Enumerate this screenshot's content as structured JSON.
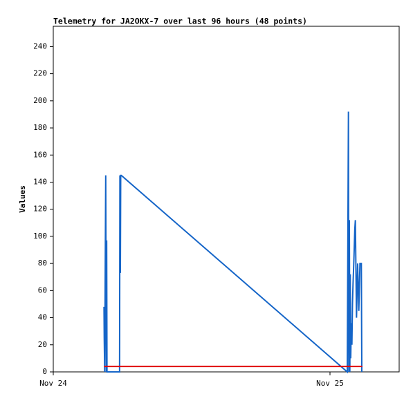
{
  "chart_data": {
    "type": "line",
    "title": "Telemetry for JA2OKX-7 over last 96 hours (48 points)",
    "y_label": "Values",
    "xlim": [
      0,
      30
    ],
    "xticks": [
      {
        "value": 0,
        "label": "Nov 24"
      },
      {
        "value": 24,
        "label": "Nov 25"
      }
    ],
    "ylim": [
      0,
      255
    ],
    "yticks": [
      0,
      20,
      40,
      60,
      80,
      100,
      120,
      140,
      160,
      180,
      200,
      220,
      240
    ],
    "grid": false,
    "series": [
      {
        "color": "#1565c8",
        "x": [
          4.4,
          4.42,
          4.46,
          4.55,
          4.6,
          4.63,
          4.66,
          5.75,
          5.78,
          5.82,
          5.85,
          5.9,
          25.5,
          25.6,
          25.63,
          25.68,
          25.72,
          25.76,
          25.8,
          25.85,
          25.9,
          25.95,
          26.0,
          26.05,
          26.1,
          26.15,
          26.2,
          26.3,
          26.4,
          26.5,
          26.6,
          26.72,
          26.76
        ],
        "values": [
          48,
          25,
          0,
          145,
          0,
          97,
          0,
          0,
          145,
          73,
          145,
          145,
          0,
          192,
          0,
          112,
          0,
          72,
          10,
          36,
          20,
          50,
          65,
          77,
          90,
          105,
          112,
          40,
          80,
          45,
          80,
          80,
          0
        ]
      },
      {
        "color": "#e00000",
        "x": [
          4.4,
          26.8
        ],
        "values": [
          4,
          4
        ]
      }
    ]
  }
}
